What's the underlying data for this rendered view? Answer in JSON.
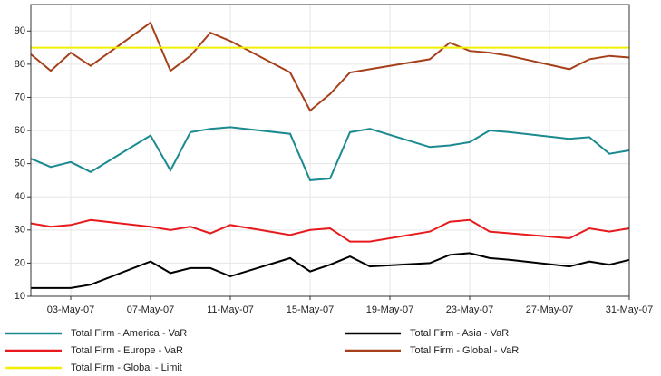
{
  "chart_data": {
    "type": "line",
    "x": [
      "01-May-07",
      "02-May-07",
      "03-May-07",
      "04-May-07",
      "07-May-07",
      "08-May-07",
      "09-May-07",
      "10-May-07",
      "11-May-07",
      "14-May-07",
      "15-May-07",
      "16-May-07",
      "17-May-07",
      "18-May-07",
      "21-May-07",
      "22-May-07",
      "23-May-07",
      "24-May-07",
      "25-May-07",
      "28-May-07",
      "29-May-07",
      "30-May-07",
      "31-May-07"
    ],
    "xlim": [
      "01-May-07",
      "31-May-07"
    ],
    "xticks": [
      "03-May-07",
      "07-May-07",
      "11-May-07",
      "15-May-07",
      "19-May-07",
      "23-May-07",
      "27-May-07",
      "31-May-07"
    ],
    "ylim": [
      10,
      98
    ],
    "yticks": [
      10,
      20,
      30,
      40,
      50,
      60,
      70,
      80,
      90
    ],
    "grid": true,
    "series": [
      {
        "name": "Total Firm - America - VaR",
        "color": "#1b8a90",
        "values": [
          51.5,
          49,
          50.5,
          47.5,
          58.5,
          48,
          59.5,
          60.5,
          61,
          59,
          45,
          45.5,
          59.5,
          60.5,
          55,
          55.5,
          56.5,
          60,
          59.5,
          57.5,
          58,
          53,
          54
        ]
      },
      {
        "name": "Total Firm - Asia - VaR",
        "color": "#000000",
        "values": [
          12.5,
          12.5,
          12.5,
          13.5,
          20.5,
          17,
          18.5,
          18.5,
          16,
          21.5,
          17.5,
          19.5,
          22,
          19,
          20,
          22.5,
          23,
          21.5,
          21,
          19,
          20.5,
          19.5,
          21
        ]
      },
      {
        "name": "Total Firm - Europe - VaR",
        "color": "#e8191c",
        "values": [
          32,
          31,
          31.5,
          33,
          31,
          30,
          31,
          29,
          31.5,
          28.5,
          30,
          30.5,
          26.5,
          26.5,
          29.5,
          32.5,
          33,
          29.5,
          29,
          27.5,
          30.5,
          29.5,
          30.5
        ]
      },
      {
        "name": "Total Firm - Global - VaR",
        "color": "#a5401a",
        "values": [
          83,
          78,
          83.5,
          79.5,
          92.5,
          78,
          82.5,
          89.5,
          87,
          77.5,
          66,
          71,
          77.5,
          78.5,
          81.5,
          86.5,
          84,
          83.5,
          82.5,
          78.5,
          81.5,
          82.5,
          82
        ]
      },
      {
        "name": "Total Firm - Global - Limit",
        "color": "#f0f000",
        "values": [
          85,
          85,
          85,
          85,
          85,
          85,
          85,
          85,
          85,
          85,
          85,
          85,
          85,
          85,
          85,
          85,
          85,
          85,
          85,
          85,
          85,
          85,
          85
        ]
      }
    ]
  }
}
